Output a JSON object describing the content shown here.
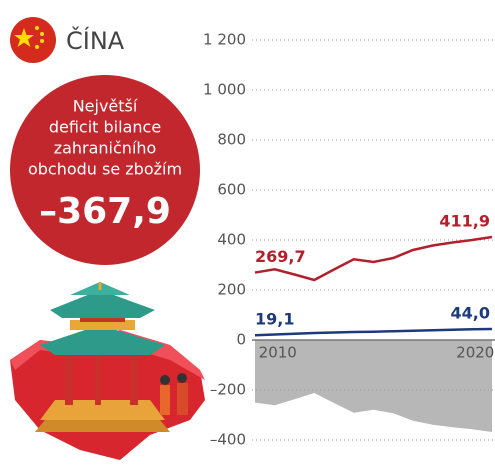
{
  "country": "ČÍNA",
  "callout": {
    "lines": [
      "Největší",
      "deficit bilance",
      "zahraničního",
      "obchodu se zbožím"
    ],
    "value": "–367,9"
  },
  "chart_data": {
    "type": "line",
    "x": [
      2009,
      2010,
      2011,
      2012,
      2013,
      2014,
      2015,
      2016,
      2017,
      2018,
      2019,
      2020,
      2021
    ],
    "xlim": [
      2009,
      2021
    ],
    "xticks": [
      2010,
      2020
    ],
    "ylim": [
      -400,
      1200
    ],
    "yticks": [
      {
        "value": -400,
        "label": "–400"
      },
      {
        "value": -200,
        "label": "–200"
      },
      0,
      200,
      400,
      600,
      800,
      {
        "value": 1000,
        "label": "1 000"
      },
      {
        "value": 1200,
        "label": "1 200"
      }
    ],
    "grid": true,
    "series": [
      {
        "type": "line",
        "color": "#b31f2c",
        "values": [
          269.7,
          283,
          262,
          240,
          282,
          323,
          312,
          328,
          360,
          378,
          390,
          400,
          411.9
        ],
        "value_labels": [
          "269,7",
          null,
          null,
          null,
          null,
          null,
          null,
          null,
          null,
          null,
          null,
          null,
          "411,9"
        ]
      },
      {
        "type": "line",
        "color": "#1c3a7c",
        "values": [
          19.1,
          22,
          25,
          28,
          30,
          32,
          33,
          35,
          37,
          39,
          41,
          43,
          44.0
        ],
        "value_labels": [
          "19,1",
          null,
          null,
          null,
          null,
          null,
          null,
          null,
          null,
          null,
          null,
          null,
          "44,0"
        ]
      },
      {
        "type": "area",
        "color": "#b7b7b7",
        "values": [
          -250.6,
          -261,
          -237,
          -212,
          -252,
          -291,
          -279,
          -293,
          -323,
          -339,
          -349,
          -357,
          -367.9
        ]
      }
    ]
  }
}
